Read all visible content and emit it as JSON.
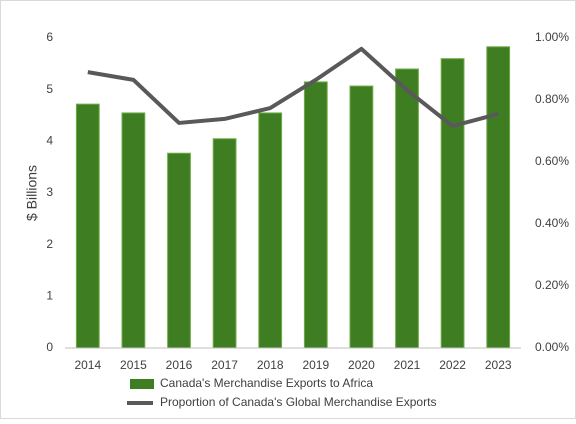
{
  "chart_data": {
    "type": "bar",
    "y_label": "$ Billions",
    "categories": [
      "2014",
      "2015",
      "2016",
      "2017",
      "2018",
      "2019",
      "2020",
      "2021",
      "2022",
      "2023"
    ],
    "series": [
      {
        "name": "Canada's Merchandise Exports to Africa",
        "type": "bar",
        "color": "#3f7d23",
        "values": [
          4.72,
          4.55,
          3.77,
          4.05,
          4.55,
          5.15,
          5.07,
          5.4,
          5.6,
          5.83
        ]
      },
      {
        "name": "Proportion of Canada's Global Merchandise Exports",
        "type": "line",
        "axis": "y2",
        "color": "#595959",
        "values": [
          0.89,
          0.865,
          0.726,
          0.739,
          0.774,
          0.865,
          0.965,
          0.832,
          0.716,
          0.755
        ]
      }
    ],
    "ylim": [
      0,
      6
    ],
    "yticks": [
      0,
      1,
      2,
      3,
      4,
      5,
      6
    ],
    "y2lim": [
      0,
      1
    ],
    "y2ticks": [
      {
        "value": 0,
        "label": "0.00%"
      },
      {
        "value": 0.2,
        "label": "0.20%"
      },
      {
        "value": 0.4,
        "label": "0.40%"
      },
      {
        "value": 0.6,
        "label": "0.60%"
      },
      {
        "value": 0.8,
        "label": "0.80%"
      },
      {
        "value": 1,
        "label": "1.00%"
      }
    ]
  }
}
